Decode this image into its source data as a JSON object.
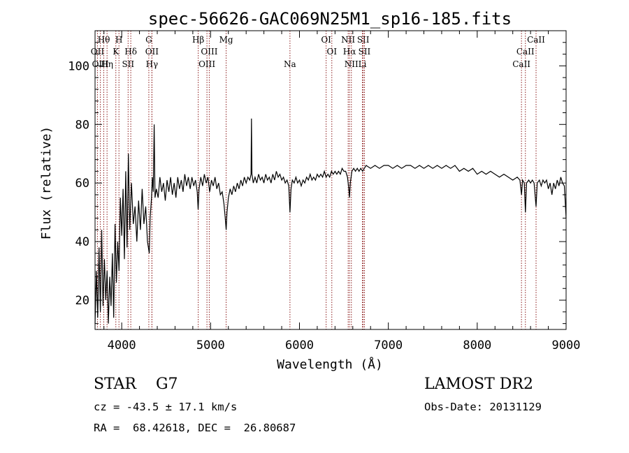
{
  "chart_data": {
    "type": "line",
    "title": "spec-56626-GAC069N25M1_sp16-185.fits",
    "xlabel": "Wavelength (Å)",
    "ylabel": "Flux (relative)",
    "xlim": [
      3700,
      9000
    ],
    "ylim": [
      10,
      112
    ],
    "xticks": [
      4000,
      5000,
      6000,
      7000,
      8000,
      9000
    ],
    "yticks": [
      20,
      40,
      60,
      80,
      100
    ],
    "grid": false,
    "line_color": "#000000",
    "marker_color": "#8b1a1a",
    "series": [
      {
        "points": [
          [
            3700,
            12
          ],
          [
            3715,
            30
          ],
          [
            3730,
            14
          ],
          [
            3745,
            38
          ],
          [
            3760,
            16
          ],
          [
            3775,
            44
          ],
          [
            3790,
            18
          ],
          [
            3805,
            34
          ],
          [
            3820,
            20
          ],
          [
            3835,
            30
          ],
          [
            3850,
            12
          ],
          [
            3865,
            28
          ],
          [
            3880,
            18
          ],
          [
            3895,
            36
          ],
          [
            3910,
            14
          ],
          [
            3925,
            46
          ],
          [
            3940,
            26
          ],
          [
            3955,
            40
          ],
          [
            3970,
            30
          ],
          [
            3985,
            55
          ],
          [
            4000,
            42
          ],
          [
            4015,
            58
          ],
          [
            4030,
            34
          ],
          [
            4045,
            64
          ],
          [
            4060,
            38
          ],
          [
            4075,
            70
          ],
          [
            4090,
            44
          ],
          [
            4110,
            60
          ],
          [
            4130,
            46
          ],
          [
            4150,
            52
          ],
          [
            4170,
            40
          ],
          [
            4190,
            54
          ],
          [
            4210,
            44
          ],
          [
            4230,
            58
          ],
          [
            4250,
            46
          ],
          [
            4270,
            52
          ],
          [
            4290,
            40
          ],
          [
            4310,
            36
          ],
          [
            4320,
            48
          ],
          [
            4335,
            55
          ],
          [
            4345,
            62
          ],
          [
            4355,
            57
          ],
          [
            4365,
            80
          ],
          [
            4375,
            55
          ],
          [
            4390,
            58
          ],
          [
            4410,
            55
          ],
          [
            4430,
            62
          ],
          [
            4450,
            57
          ],
          [
            4470,
            60
          ],
          [
            4490,
            54
          ],
          [
            4510,
            61
          ],
          [
            4530,
            57
          ],
          [
            4550,
            62
          ],
          [
            4570,
            56
          ],
          [
            4590,
            60
          ],
          [
            4610,
            55
          ],
          [
            4630,
            62
          ],
          [
            4650,
            58
          ],
          [
            4670,
            61
          ],
          [
            4690,
            57
          ],
          [
            4710,
            63
          ],
          [
            4730,
            59
          ],
          [
            4750,
            62
          ],
          [
            4770,
            58
          ],
          [
            4790,
            62
          ],
          [
            4810,
            59
          ],
          [
            4830,
            61
          ],
          [
            4850,
            57
          ],
          [
            4860,
            51
          ],
          [
            4870,
            58
          ],
          [
            4890,
            62
          ],
          [
            4910,
            59
          ],
          [
            4930,
            63
          ],
          [
            4950,
            60
          ],
          [
            4970,
            62
          ],
          [
            4990,
            57
          ],
          [
            5010,
            61
          ],
          [
            5030,
            59
          ],
          [
            5050,
            62
          ],
          [
            5070,
            58
          ],
          [
            5090,
            60
          ],
          [
            5110,
            56
          ],
          [
            5130,
            57
          ],
          [
            5150,
            53
          ],
          [
            5165,
            48
          ],
          [
            5175,
            44
          ],
          [
            5185,
            50
          ],
          [
            5200,
            55
          ],
          [
            5220,
            58
          ],
          [
            5240,
            56
          ],
          [
            5260,
            59
          ],
          [
            5280,
            57
          ],
          [
            5300,
            60
          ],
          [
            5320,
            58
          ],
          [
            5340,
            61
          ],
          [
            5360,
            59
          ],
          [
            5380,
            62
          ],
          [
            5400,
            60
          ],
          [
            5420,
            62
          ],
          [
            5440,
            61
          ],
          [
            5455,
            63
          ],
          [
            5460,
            82
          ],
          [
            5465,
            63
          ],
          [
            5480,
            60
          ],
          [
            5500,
            62
          ],
          [
            5520,
            60
          ],
          [
            5540,
            63
          ],
          [
            5560,
            61
          ],
          [
            5580,
            62
          ],
          [
            5600,
            60
          ],
          [
            5620,
            63
          ],
          [
            5640,
            61
          ],
          [
            5660,
            62
          ],
          [
            5680,
            60
          ],
          [
            5700,
            63
          ],
          [
            5720,
            61
          ],
          [
            5740,
            64
          ],
          [
            5760,
            62
          ],
          [
            5780,
            63
          ],
          [
            5800,
            61
          ],
          [
            5820,
            62
          ],
          [
            5840,
            60
          ],
          [
            5860,
            61
          ],
          [
            5880,
            59
          ],
          [
            5893,
            50
          ],
          [
            5905,
            58
          ],
          [
            5920,
            61
          ],
          [
            5940,
            60
          ],
          [
            5960,
            62
          ],
          [
            5980,
            60
          ],
          [
            6000,
            61
          ],
          [
            6020,
            59
          ],
          [
            6040,
            61
          ],
          [
            6060,
            60
          ],
          [
            6080,
            62
          ],
          [
            6100,
            61
          ],
          [
            6120,
            63
          ],
          [
            6140,
            61
          ],
          [
            6160,
            62
          ],
          [
            6180,
            61
          ],
          [
            6200,
            63
          ],
          [
            6220,
            62
          ],
          [
            6240,
            63
          ],
          [
            6260,
            62
          ],
          [
            6280,
            64
          ],
          [
            6300,
            62
          ],
          [
            6320,
            63
          ],
          [
            6340,
            62
          ],
          [
            6360,
            64
          ],
          [
            6380,
            63
          ],
          [
            6400,
            64
          ],
          [
            6420,
            63
          ],
          [
            6440,
            64
          ],
          [
            6460,
            63
          ],
          [
            6480,
            65
          ],
          [
            6500,
            64
          ],
          [
            6520,
            64
          ],
          [
            6540,
            62
          ],
          [
            6555,
            58
          ],
          [
            6563,
            55
          ],
          [
            6572,
            60
          ],
          [
            6590,
            64
          ],
          [
            6610,
            65
          ],
          [
            6630,
            64
          ],
          [
            6650,
            65
          ],
          [
            6670,
            64
          ],
          [
            6690,
            65
          ],
          [
            6710,
            64
          ],
          [
            6730,
            65
          ],
          [
            6750,
            66
          ],
          [
            6800,
            65
          ],
          [
            6850,
            66
          ],
          [
            6900,
            65
          ],
          [
            6950,
            66
          ],
          [
            7000,
            66
          ],
          [
            7050,
            65
          ],
          [
            7100,
            66
          ],
          [
            7150,
            65
          ],
          [
            7200,
            66
          ],
          [
            7250,
            66
          ],
          [
            7300,
            65
          ],
          [
            7350,
            66
          ],
          [
            7400,
            65
          ],
          [
            7450,
            66
          ],
          [
            7500,
            65
          ],
          [
            7550,
            66
          ],
          [
            7600,
            65
          ],
          [
            7650,
            66
          ],
          [
            7700,
            65
          ],
          [
            7750,
            66
          ],
          [
            7800,
            64
          ],
          [
            7850,
            65
          ],
          [
            7900,
            64
          ],
          [
            7950,
            65
          ],
          [
            8000,
            63
          ],
          [
            8050,
            64
          ],
          [
            8100,
            63
          ],
          [
            8150,
            64
          ],
          [
            8200,
            63
          ],
          [
            8250,
            62
          ],
          [
            8300,
            63
          ],
          [
            8350,
            62
          ],
          [
            8400,
            61
          ],
          [
            8450,
            62
          ],
          [
            8480,
            61
          ],
          [
            8498,
            56
          ],
          [
            8510,
            61
          ],
          [
            8530,
            60
          ],
          [
            8542,
            50
          ],
          [
            8555,
            60
          ],
          [
            8580,
            61
          ],
          [
            8600,
            60
          ],
          [
            8620,
            61
          ],
          [
            8640,
            60
          ],
          [
            8662,
            52
          ],
          [
            8675,
            60
          ],
          [
            8700,
            61
          ],
          [
            8720,
            59
          ],
          [
            8740,
            61
          ],
          [
            8760,
            60
          ],
          [
            8780,
            61
          ],
          [
            8800,
            58
          ],
          [
            8820,
            60
          ],
          [
            8840,
            56
          ],
          [
            8860,
            60
          ],
          [
            8880,
            58
          ],
          [
            8900,
            61
          ],
          [
            8920,
            59
          ],
          [
            8940,
            62
          ],
          [
            8960,
            60
          ],
          [
            8980,
            59
          ],
          [
            8990,
            54
          ],
          [
            9000,
            48
          ]
        ]
      }
    ],
    "line_markers": [
      {
        "label": "Hθ",
        "x": 3798,
        "row": 1
      },
      {
        "label": "OII",
        "x": 3727,
        "row": 2
      },
      {
        "label": "OIII",
        "x": 3760,
        "row": 3
      },
      {
        "label": "Hη",
        "x": 3835,
        "row": 3
      },
      {
        "label": "H",
        "x": 3969,
        "row": 1
      },
      {
        "label": "K",
        "x": 3934,
        "row": 2
      },
      {
        "label": "Hδ",
        "x": 4102,
        "row": 2
      },
      {
        "label": "SII",
        "x": 4072,
        "row": 3
      },
      {
        "label": "G",
        "x": 4305,
        "row": 1
      },
      {
        "label": "OII",
        "x": 4340,
        "row": 2
      },
      {
        "label": "Hγ",
        "x": 4340,
        "row": 3
      },
      {
        "label": "Hβ",
        "x": 4861,
        "row": 1
      },
      {
        "label": "OIII",
        "x": 4985,
        "row": 2
      },
      {
        "label": "OIII",
        "x": 4959,
        "row": 3
      },
      {
        "label": "Mg",
        "x": 5175,
        "row": 1
      },
      {
        "label": "Na",
        "x": 5893,
        "row": 3
      },
      {
        "label": "OI",
        "x": 6300,
        "row": 1
      },
      {
        "label": "OI",
        "x": 6364,
        "row": 2
      },
      {
        "label": "NII",
        "x": 6548,
        "row": 1
      },
      {
        "label": "Hα",
        "x": 6563,
        "row": 2
      },
      {
        "label": "NII",
        "x": 6584,
        "row": 3
      },
      {
        "label": "SII",
        "x": 6717,
        "row": 1
      },
      {
        "label": "SII",
        "x": 6731,
        "row": 2
      },
      {
        "label": "Li",
        "x": 6708,
        "row": 3
      },
      {
        "label": "CaII",
        "x": 8662,
        "row": 1
      },
      {
        "label": "CaII",
        "x": 8542,
        "row": 2
      },
      {
        "label": "CaII",
        "x": 8498,
        "row": 3
      }
    ]
  },
  "info": {
    "object": "STAR    G7",
    "survey": "LAMOST DR2",
    "cz": "cz = -43.5 ± 17.1 km/s",
    "obs_date": "Obs-Date: 20131129",
    "coords": "RA =  68.42618, DEC =  26.80687"
  }
}
